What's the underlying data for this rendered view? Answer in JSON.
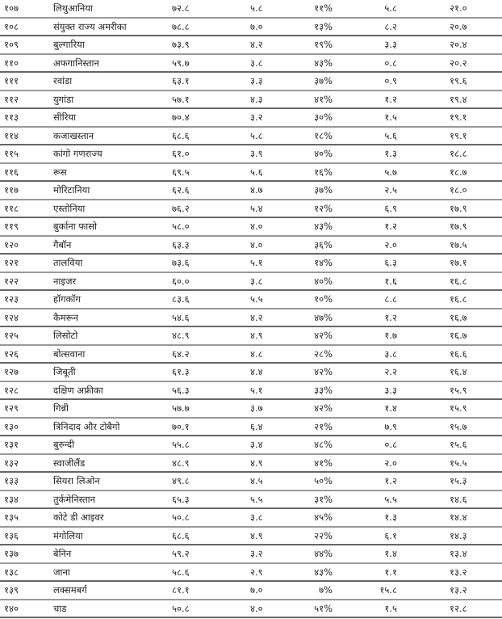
{
  "rows": [
    [
      "१०७",
      "लिथुआनिया",
      "७२.८",
      "५.८",
      "११%",
      "५.८",
      "२१.०"
    ],
    [
      "१०८",
      "संयुक्त राज्य अमरीका",
      "७८.८",
      "७.०",
      "१३%",
      "८.२",
      "२०.७"
    ],
    [
      "१०९",
      "बुल्गारिया",
      "७३.९",
      "४.२",
      "१९%",
      "३.३",
      "२०.४"
    ],
    [
      "११०",
      "अफगानिस्तान",
      "५९.७",
      "३.८",
      "४३%",
      "०.८",
      "२०.२"
    ],
    [
      "१११",
      "रवांडा",
      "६३.१",
      "३.३",
      "३७%",
      "०.९",
      "१९.६"
    ],
    [
      "११२",
      "युगांडा",
      "५७.१",
      "४.३",
      "४१%",
      "१.२",
      "१९.४"
    ],
    [
      "११३",
      "सीरिया",
      "७०.४",
      "३.२",
      "३०%",
      "१.५",
      "१९.१"
    ],
    [
      "११४",
      "कजाखस्तान",
      "६८.६",
      "५.८",
      "१८%",
      "५.६",
      "१९.१"
    ],
    [
      "११५",
      "कांगो गणराज्य",
      "६१.०",
      "३.९",
      "४०%",
      "१.३",
      "१८.८"
    ],
    [
      "११६",
      "रूस",
      "६९.५",
      "५.६",
      "१६%",
      "५.७",
      "१८.७"
    ],
    [
      "११७",
      "मोरिटानिया",
      "६२.६",
      "४.७",
      "३७%",
      "२.५",
      "१८.०"
    ],
    [
      "११८",
      "एस्तोनिया",
      "७६.२",
      "५.४",
      "१२%",
      "६.९",
      "१७.९"
    ],
    [
      "११९",
      "बुर्काना फासो",
      "५८.०",
      "४.०",
      "४३%",
      "१.२",
      "१७.९"
    ],
    [
      "१२०",
      "गैबॉन",
      "६३.३",
      "४.०",
      "३६%",
      "२.०",
      "१७.५"
    ],
    [
      "१२१",
      "तालविया",
      "७३.६",
      "५.१",
      "१४%",
      "६.३",
      "१७.१"
    ],
    [
      "१२२",
      "नाइजर",
      "६०.०",
      "३.८",
      "४०%",
      "१.६",
      "१६.८"
    ],
    [
      "१२३",
      "हॉगकॉग",
      "८३.६",
      "५.५",
      "१०%",
      "८.८",
      "१६.८"
    ],
    [
      "१२४",
      "कैमरून",
      "५४.६",
      "४.२",
      "४७%",
      "१.२",
      "१६.७"
    ],
    [
      "१२५",
      "लिसोटो",
      "४८.९",
      "४.९",
      "४२%",
      "१.७",
      "१६.७"
    ],
    [
      "१२६",
      "बोत्सवाना",
      "६४.२",
      "४.८",
      "२८%",
      "३.८",
      "१६.६"
    ],
    [
      "१२७",
      "जिबूती",
      "६१.३",
      "४.४",
      "४२%",
      "२.२",
      "१६.४"
    ],
    [
      "१२८",
      "दक्षिण अफ्रीका",
      "५६.३",
      "५.१",
      "३३%",
      "३.३",
      "१५.९"
    ],
    [
      "१२९",
      "गिन्नी",
      "५७.७",
      "३.७",
      "४२%",
      "१.४",
      "१५.९"
    ],
    [
      "१३०",
      "त्रिनिदाद और टोबैगो",
      "७०.१",
      "६.४",
      "२१%",
      "७.९",
      "१५.७"
    ],
    [
      "१३१",
      "बुरुन्दी",
      "५५.८",
      "३.४",
      "४८%",
      "०.८",
      "१५.६"
    ],
    [
      "१३२",
      "स्वाजीलैंड",
      "४८.९",
      "४.९",
      "४१%",
      "२.०",
      "१५.५"
    ],
    [
      "१३३",
      "सियरा लिओन",
      "४९.८",
      "४.५",
      "५०%",
      "१.२",
      "१५.३"
    ],
    [
      "१३४",
      "तुर्कमेनिस्तान",
      "६५.३",
      "५.५",
      "३१%",
      "५.५",
      "१४.६"
    ],
    [
      "१३५",
      "कोटे डी आइवर",
      "५०.८",
      "३.८",
      "४५%",
      "१.३",
      "१४.४"
    ],
    [
      "१३६",
      "मंगोलिया",
      "६८.६",
      "४.९",
      "२२%",
      "६.१",
      "१४.३"
    ],
    [
      "१३७",
      "बेनिन",
      "५९.२",
      "३.२",
      "४४%",
      "१.४",
      "१३.४"
    ],
    [
      "१३८",
      "जाना",
      "५८.६",
      "२.९",
      "४३%",
      "१.१",
      "१३.२"
    ],
    [
      "१३९",
      "लक्समबर्ग",
      "८१.१",
      "७.०",
      "७%",
      "१५.८",
      "१३.२"
    ],
    [
      "१४०",
      "चाड",
      "५०.८",
      "४.०",
      "५१%",
      "१.५",
      "१२.८"
    ]
  ]
}
